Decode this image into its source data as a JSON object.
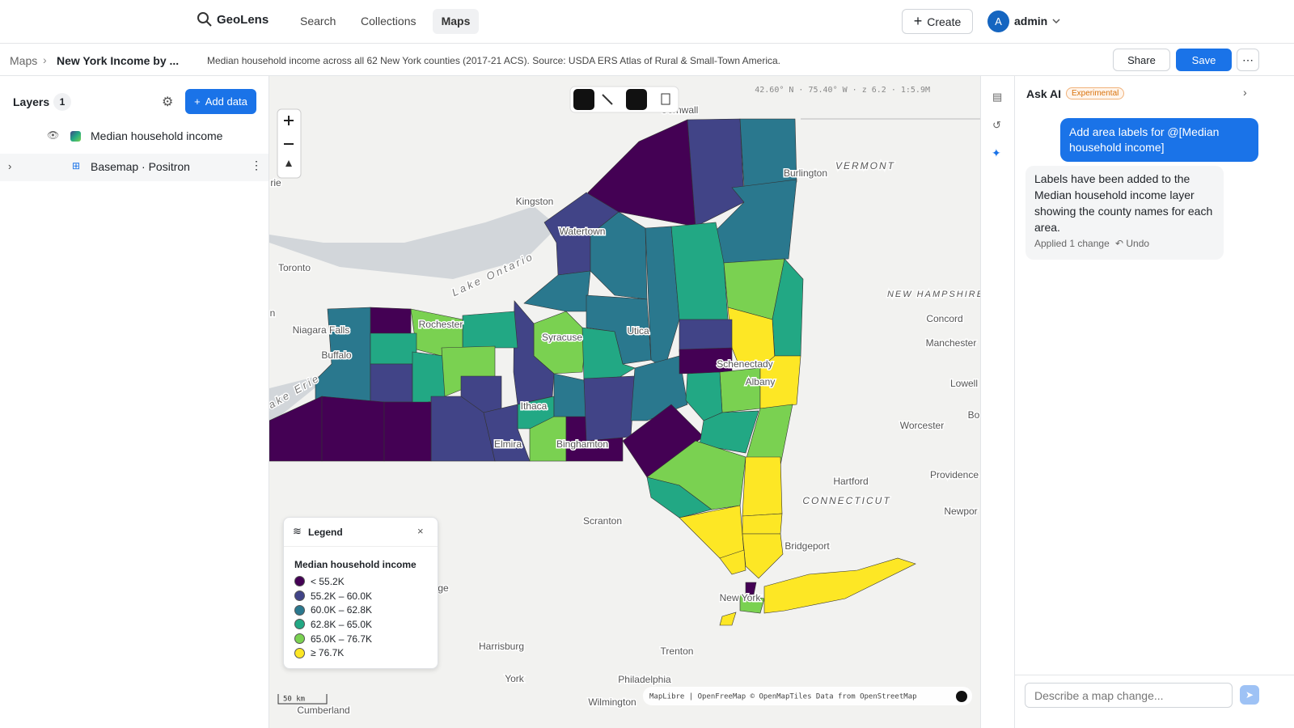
{
  "header": {
    "logo": "GeoLens",
    "nav": [
      "Search",
      "Collections",
      "Maps"
    ],
    "create": "Create",
    "avatar": "A",
    "user": "admin"
  },
  "toolbar": {
    "breadcrumb": [
      "Maps",
      "New York Income by ..."
    ],
    "description": "Median household income across all 62 New York counties (2017-21 ACS). Source: USDA ERS Atlas of Rural & Small-Town America.",
    "share": "Share",
    "save": "Save"
  },
  "layers": {
    "title": "Layers",
    "count": 1,
    "add": "Add data",
    "items": [
      "Median household income",
      "Basemap · Positron"
    ]
  },
  "map": {
    "coords": "42.60° N · 75.40° W · z 6.2 · 1:5.9M",
    "scale": "50 km",
    "attribution": "MapLibre | OpenFreeMap © OpenMapTiles Data from OpenStreetMap",
    "places": [
      "Cornwall",
      "Burlington",
      "VERMONT",
      "Kingston",
      "Watertown",
      "Toronto",
      "Lake Ontario",
      "NEW HAMPSHIRE",
      "Concord",
      "Manchester",
      "Niagara Falls",
      "Rochester",
      "Syracuse",
      "Utica",
      "Buffalo",
      "Schenectady",
      "Albany",
      "Lowell",
      "Lake Erie",
      "Ithaca",
      "Binghamton",
      "Elmira",
      "Worcester",
      "Hartford",
      "Providence",
      "CONNECTICUT",
      "Scranton",
      "Bridgeport",
      "New York",
      "Harrisburg",
      "Trenton",
      "Philadelphia",
      "York",
      "Wilmington",
      "Cumberland",
      "Bo",
      "Newpor",
      "ge",
      "rie",
      "n"
    ]
  },
  "legend": {
    "title": "Legend",
    "layer": "Median household income",
    "classes": [
      {
        "label": "< 55.2K",
        "color": "#440154"
      },
      {
        "label": "55.2K – 60.0K",
        "color": "#414487"
      },
      {
        "label": "60.0K – 62.8K",
        "color": "#2a788e"
      },
      {
        "label": "62.8K – 65.0K",
        "color": "#22a884"
      },
      {
        "label": "65.0K – 76.7K",
        "color": "#7ad151"
      },
      {
        "label": "≥ 76.7K",
        "color": "#fde725"
      }
    ]
  },
  "ai": {
    "title": "Ask AI",
    "badge": "Experimental",
    "user_message": "Add area labels for @[Median household income]",
    "reply": "Labels have been added to the Median household income layer showing the county names for each area.",
    "applied": "Applied 1 change",
    "undo": "Undo",
    "placeholder": "Describe a map change..."
  }
}
